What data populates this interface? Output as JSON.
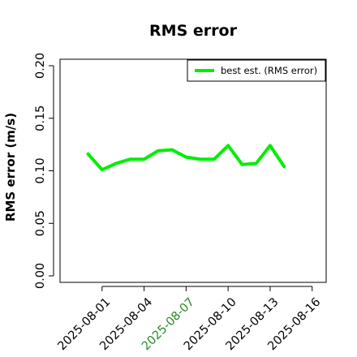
{
  "chart_data": {
    "type": "line",
    "title": "RMS error",
    "xlabel": "",
    "ylabel": "RMS error (m/s)",
    "ylim": [
      0.0,
      0.2
    ],
    "yticks": [
      "0.00",
      "0.05",
      "0.10",
      "0.15",
      "0.20"
    ],
    "xticks": [
      {
        "date": "2025-08-01",
        "label": "2025-08-01",
        "color": "#000000"
      },
      {
        "date": "2025-08-04",
        "label": "2025-08-04",
        "color": "#000000"
      },
      {
        "date": "2025-08-07",
        "label": "2025-08-07",
        "color": "#228B22"
      },
      {
        "date": "2025-08-10",
        "label": "2025-08-10",
        "color": "#000000"
      },
      {
        "date": "2025-08-13",
        "label": "2025-08-13",
        "color": "#000000"
      },
      {
        "date": "2025-08-16",
        "label": "2025-08-16",
        "color": "#000000"
      }
    ],
    "xlim": [
      "2025-07-29",
      "2025-08-17"
    ],
    "grid": false,
    "legend_position": "top-right",
    "series": [
      {
        "name": "best est. (RMS error)",
        "color": "#00ee00",
        "x": [
          "2025-07-31",
          "2025-08-01",
          "2025-08-02",
          "2025-08-03",
          "2025-08-04",
          "2025-08-05",
          "2025-08-06",
          "2025-08-07",
          "2025-08-08",
          "2025-08-09",
          "2025-08-10",
          "2025-08-11",
          "2025-08-12",
          "2025-08-13",
          "2025-08-14"
        ],
        "y": [
          0.116,
          0.101,
          0.107,
          0.111,
          0.111,
          0.119,
          0.12,
          0.113,
          0.111,
          0.111,
          0.124,
          0.106,
          0.107,
          0.124,
          0.104
        ]
      }
    ]
  }
}
